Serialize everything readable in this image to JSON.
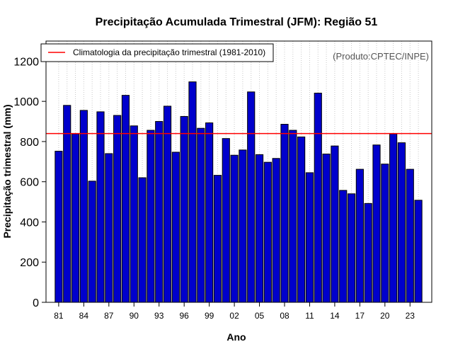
{
  "chart_data": {
    "type": "bar",
    "title": "Precipitação Acumulada Trimestral (JFM): Região 51",
    "xlabel": "Ano",
    "ylabel": "Precipitação trimestral (mm)",
    "credit": "(Produto:CPTEC/INPE)",
    "ylim": [
      0,
      1300
    ],
    "yticks": [
      0,
      200,
      400,
      600,
      800,
      1000,
      1200
    ],
    "xtick_labels": [
      "81",
      "84",
      "87",
      "90",
      "93",
      "96",
      "99",
      "02",
      "05",
      "08",
      "11",
      "14",
      "17",
      "20",
      "23"
    ],
    "grid": true,
    "bar_color": "#0000cc",
    "categories": [
      "1981",
      "1982",
      "1983",
      "1984",
      "1985",
      "1986",
      "1987",
      "1988",
      "1989",
      "1990",
      "1991",
      "1992",
      "1993",
      "1994",
      "1995",
      "1996",
      "1997",
      "1998",
      "1999",
      "2000",
      "2001",
      "2002",
      "2003",
      "2004",
      "2005",
      "2006",
      "2007",
      "2008",
      "2009",
      "2010",
      "2011",
      "2012",
      "2013",
      "2014",
      "2015",
      "2016",
      "2017",
      "2018",
      "2019",
      "2020",
      "2021",
      "2022",
      "2023",
      "2024"
    ],
    "values": [
      752,
      980,
      838,
      955,
      603,
      948,
      740,
      930,
      1030,
      878,
      620,
      856,
      900,
      976,
      747,
      925,
      1097,
      866,
      893,
      632,
      815,
      732,
      758,
      1047,
      735,
      697,
      716,
      886,
      856,
      823,
      645,
      1041,
      738,
      778,
      557,
      540,
      662,
      492,
      783,
      688,
      838,
      794,
      662,
      508
    ],
    "reference_line": {
      "label": "Climatologia da precipitação trimestral (1981-2010)",
      "value": 840,
      "color": "#ff0000"
    },
    "legend_position": "top-left"
  }
}
